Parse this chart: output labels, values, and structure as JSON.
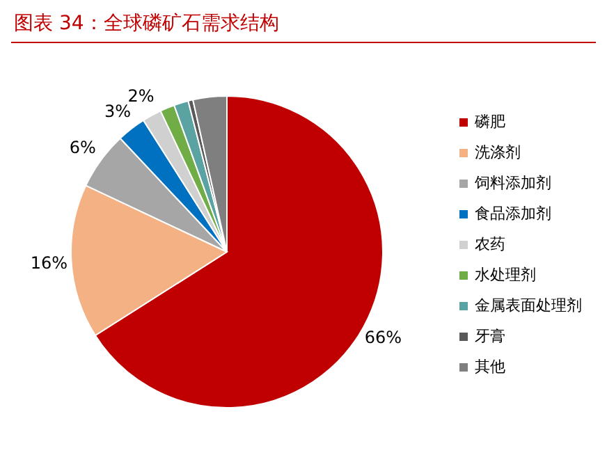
{
  "chart_data": {
    "type": "pie",
    "title": "图表 34：全球磷矿石需求结构",
    "categories": [
      "磷肥",
      "洗涤剂",
      "饲料添加剂",
      "食品添加剂",
      "农药",
      "水处理剂",
      "金属表面处理剂",
      "牙膏",
      "其他"
    ],
    "values": [
      66,
      16,
      6,
      3,
      2,
      1.5,
      1.5,
      0.5,
      3.5
    ],
    "colors": [
      "#c00000",
      "#f4b183",
      "#a6a6a6",
      "#0070c0",
      "#d0d0d0",
      "#70ad47",
      "#5ba3a3",
      "#595959",
      "#7f7f7f"
    ],
    "value_labels": [
      "66%",
      "16%",
      "6%",
      "3%",
      "2%",
      null,
      null,
      null,
      null
    ],
    "legend": "right"
  }
}
